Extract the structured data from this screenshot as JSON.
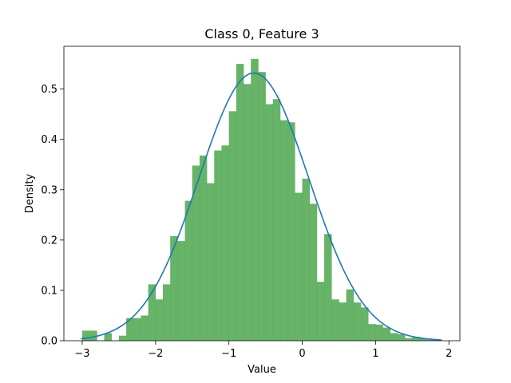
{
  "chart_data": {
    "type": "bar",
    "title": "Class 0, Feature 3",
    "xlabel": "Value",
    "ylabel": "Density",
    "xlim": [
      -3.25,
      2.15
    ],
    "ylim": [
      0,
      0.585
    ],
    "xticks": [
      -3,
      -2,
      -1,
      0,
      1,
      2
    ],
    "xtick_labels": [
      "−3",
      "−2",
      "−1",
      "0",
      "1",
      "2"
    ],
    "yticks": [
      0.0,
      0.1,
      0.2,
      0.3,
      0.4,
      0.5
    ],
    "ytick_labels": [
      "0.0",
      "0.1",
      "0.2",
      "0.3",
      "0.4",
      "0.5"
    ],
    "grid": false,
    "histogram": {
      "color": "#4ca64c",
      "bin_edges": [
        -3.0,
        -2.9,
        -2.8,
        -2.7,
        -2.6,
        -2.5,
        -2.4,
        -2.3,
        -2.2,
        -2.1,
        -2.0,
        -1.9,
        -1.8,
        -1.7,
        -1.6,
        -1.5,
        -1.4,
        -1.3,
        -1.2,
        -1.1,
        -1.0,
        -0.9,
        -0.8,
        -0.7,
        -0.6,
        -0.5,
        -0.4,
        -0.3,
        -0.2,
        -0.1,
        0.0,
        0.1,
        0.2,
        0.3,
        0.4,
        0.5,
        0.6,
        0.7,
        0.8,
        0.9,
        1.0,
        1.1,
        1.2,
        1.3,
        1.4,
        1.5,
        1.6,
        1.7,
        1.8,
        1.9
      ],
      "densities": [
        0.02,
        0.02,
        0.0,
        0.015,
        0.0,
        0.01,
        0.045,
        0.045,
        0.05,
        0.112,
        0.082,
        0.112,
        0.208,
        0.198,
        0.278,
        0.348,
        0.368,
        0.313,
        0.378,
        0.388,
        0.456,
        0.55,
        0.51,
        0.56,
        0.534,
        0.47,
        0.48,
        0.438,
        0.434,
        0.294,
        0.322,
        0.272,
        0.117,
        0.212,
        0.082,
        0.076,
        0.102,
        0.076,
        0.066,
        0.033,
        0.032,
        0.026,
        0.015,
        0.013,
        0.005,
        0.008,
        0.004,
        0.002,
        0.002
      ]
    },
    "density_curve": {
      "type": "line",
      "color": "#1f77b4",
      "mean": -0.66,
      "std": 0.75,
      "x_range": [
        -3.02,
        1.9
      ]
    }
  }
}
